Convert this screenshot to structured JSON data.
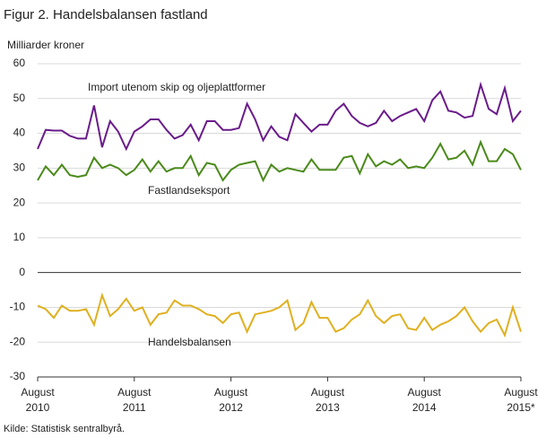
{
  "chart_data": {
    "type": "line",
    "title": "Figur 2. Handelsbalansen fastland",
    "y_label": "Milliarder  kroner",
    "source": "Kilde: Statistisk sentralbyrå.",
    "categories": [
      "August 2010",
      null,
      null,
      null,
      null,
      null,
      null,
      null,
      null,
      null,
      null,
      null,
      "August 2011",
      null,
      null,
      null,
      null,
      null,
      null,
      null,
      null,
      null,
      null,
      null,
      "August 2012",
      null,
      null,
      null,
      null,
      null,
      null,
      null,
      null,
      null,
      null,
      null,
      "August 2013",
      null,
      null,
      null,
      null,
      null,
      null,
      null,
      null,
      null,
      null,
      null,
      "August 2014",
      null,
      null,
      null,
      null,
      null,
      null,
      null,
      null,
      null,
      null,
      null,
      "August 2015*"
    ],
    "ylim": [
      -30,
      60
    ],
    "yticks": [
      -30,
      -20,
      -10,
      0,
      10,
      20,
      30,
      40,
      50,
      60
    ],
    "grid": true,
    "series": [
      {
        "name": "Import utenom skip og oljeplattformer",
        "color": "#6a1b8a",
        "values": [
          35.5,
          41,
          40.8,
          40.8,
          39.3,
          38.5,
          38.5,
          48,
          36,
          43.5,
          40.5,
          35.5,
          40.5,
          42,
          44,
          44,
          41,
          38.5,
          39.5,
          42.5,
          38,
          43.5,
          43.5,
          41,
          41,
          41.5,
          48.5,
          44,
          38,
          42,
          39,
          38,
          45.5,
          43,
          40.5,
          42.5,
          42.5,
          46.5,
          48.5,
          45,
          43,
          42,
          43,
          46.5,
          43.5,
          45,
          46,
          47,
          43.5,
          49.5,
          52,
          46.5,
          46,
          44.5,
          45,
          54,
          47,
          45.5,
          53,
          43.5,
          46.5
        ]
      },
      {
        "name": "Fastlandseksport",
        "color": "#4a8a1a",
        "values": [
          26.5,
          30.5,
          28,
          31,
          28,
          27.5,
          28,
          33,
          30,
          31,
          30,
          28,
          29.5,
          32.5,
          29,
          32,
          29,
          30,
          30,
          33.5,
          28,
          31.5,
          31,
          26.5,
          29.5,
          31,
          31.5,
          32,
          26.5,
          31,
          29,
          30,
          29.5,
          29,
          32.5,
          29.5,
          29.5,
          29.5,
          33,
          33.5,
          28.5,
          34,
          30.5,
          32,
          31,
          32.5,
          30,
          30.5,
          30,
          33,
          37,
          32.5,
          33,
          35,
          31,
          37.5,
          32,
          32,
          35.5,
          34,
          29.5
        ]
      },
      {
        "name": "Handelsbalansen",
        "color": "#e0b020",
        "values": [
          -9.5,
          -10.5,
          -13,
          -9.5,
          -11,
          -11,
          -10.5,
          -15,
          -6.5,
          -12.5,
          -10.5,
          -7.5,
          -11,
          -10,
          -15,
          -12,
          -11.5,
          -8,
          -9.5,
          -9.5,
          -10.5,
          -12,
          -12.5,
          -14.5,
          -12,
          -11.5,
          -17,
          -12,
          -11.5,
          -11,
          -10,
          -8,
          -16.5,
          -14.5,
          -8.5,
          -13,
          -13,
          -17,
          -16,
          -13.5,
          -12,
          -8,
          -12.5,
          -14.5,
          -12.5,
          -12,
          -16,
          -16.5,
          -13,
          -16.5,
          -15,
          -14,
          -12.5,
          -10,
          -14,
          -17,
          -14.5,
          -13.5,
          -18,
          -10,
          -17
        ]
      }
    ]
  }
}
